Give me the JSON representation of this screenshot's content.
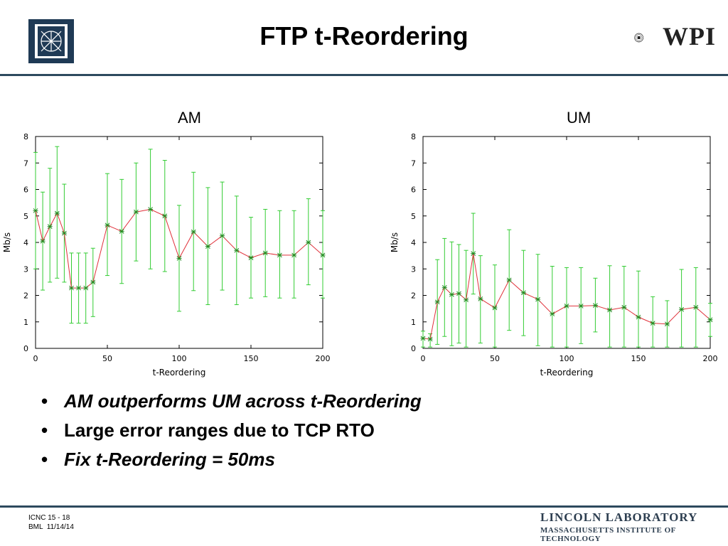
{
  "slide": {
    "title": "FTP t-Reordering",
    "right_logo_text": "WPI",
    "bullets": [
      {
        "text": "AM outperforms UM across t-Reordering",
        "italic": true
      },
      {
        "text": "Large error ranges due to TCP RTO",
        "italic": false
      },
      {
        "text": "Fix t-Reordering = 50ms",
        "italic": true
      }
    ],
    "bullet_symbol": "•",
    "footer": {
      "line1": "ICNC 15 - 18",
      "line2": "BML  11/14/14",
      "lab_name": "LINCOLN LABORATORY",
      "lab_sub": "MASSACHUSETTS INSTITUTE OF TECHNOLOGY"
    },
    "colors": {
      "navy": "#2d4a5e",
      "line": "#e0303a",
      "error": "#33cc33"
    }
  },
  "chart_data": [
    {
      "type": "line",
      "heading": "AM",
      "xlabel": "t-Reordering",
      "ylabel": "Mb/s",
      "xlim": [
        0,
        200
      ],
      "ylim": [
        0,
        8
      ],
      "xticks": [
        0,
        50,
        100,
        150,
        200
      ],
      "yticks": [
        0,
        1,
        2,
        3,
        4,
        5,
        6,
        7,
        8
      ],
      "series": [
        {
          "x": [
            0,
            5,
            10,
            15,
            20,
            25,
            30,
            35,
            40,
            50,
            60,
            70,
            80,
            90,
            100,
            110,
            120,
            130,
            140,
            150,
            160,
            170,
            180,
            190,
            200
          ],
          "y": [
            5.2,
            4.05,
            4.6,
            5.1,
            4.35,
            2.28,
            2.28,
            2.28,
            2.5,
            4.65,
            4.42,
            5.15,
            5.25,
            5.0,
            3.4,
            4.4,
            3.85,
            4.25,
            3.7,
            3.42,
            3.6,
            3.52,
            3.52,
            4.0,
            3.52
          ],
          "err_low": [
            3.0,
            2.2,
            2.5,
            2.65,
            2.5,
            0.95,
            0.95,
            0.95,
            1.2,
            2.75,
            2.45,
            3.3,
            3.0,
            2.9,
            1.4,
            2.18,
            1.65,
            2.2,
            1.65,
            1.9,
            1.95,
            1.9,
            1.9,
            2.4,
            1.9
          ],
          "err_high": [
            7.4,
            5.9,
            6.8,
            7.62,
            6.2,
            3.6,
            3.6,
            3.6,
            3.78,
            6.6,
            6.38,
            7.0,
            7.52,
            7.1,
            5.4,
            6.65,
            6.07,
            6.28,
            5.75,
            4.95,
            5.25,
            5.2,
            5.2,
            5.65,
            5.2
          ]
        }
      ]
    },
    {
      "type": "line",
      "heading": "UM",
      "xlabel": "t-Reordering",
      "ylabel": "Mb/s",
      "xlim": [
        0,
        200
      ],
      "ylim": [
        0,
        8
      ],
      "xticks": [
        0,
        50,
        100,
        150,
        200
      ],
      "yticks": [
        0,
        1,
        2,
        3,
        4,
        5,
        6,
        7,
        8
      ],
      "series": [
        {
          "x": [
            0,
            5,
            10,
            15,
            20,
            25,
            30,
            35,
            40,
            50,
            60,
            70,
            80,
            90,
            100,
            110,
            120,
            130,
            140,
            150,
            160,
            170,
            180,
            190,
            200
          ],
          "y": [
            0.38,
            0.35,
            1.75,
            2.3,
            2.03,
            2.07,
            1.83,
            3.58,
            1.87,
            1.53,
            2.58,
            2.1,
            1.85,
            1.3,
            1.6,
            1.6,
            1.62,
            1.45,
            1.55,
            1.18,
            0.95,
            0.92,
            1.47,
            1.55,
            1.08
          ],
          "err_low": [
            0.05,
            0.05,
            0.15,
            0.45,
            0.1,
            0.2,
            0.05,
            2.05,
            0.2,
            0.05,
            0.68,
            0.48,
            0.1,
            0.05,
            0.05,
            0.18,
            0.62,
            0.05,
            0.05,
            0.05,
            0.05,
            0.05,
            0.05,
            0.05,
            0.45
          ],
          "err_high": [
            0.65,
            0.55,
            3.35,
            4.15,
            4.02,
            3.92,
            3.7,
            5.1,
            3.5,
            3.15,
            4.48,
            3.7,
            3.55,
            3.1,
            3.05,
            3.05,
            2.65,
            3.12,
            3.1,
            2.92,
            1.95,
            1.8,
            2.98,
            3.05,
            1.7
          ]
        }
      ]
    }
  ]
}
